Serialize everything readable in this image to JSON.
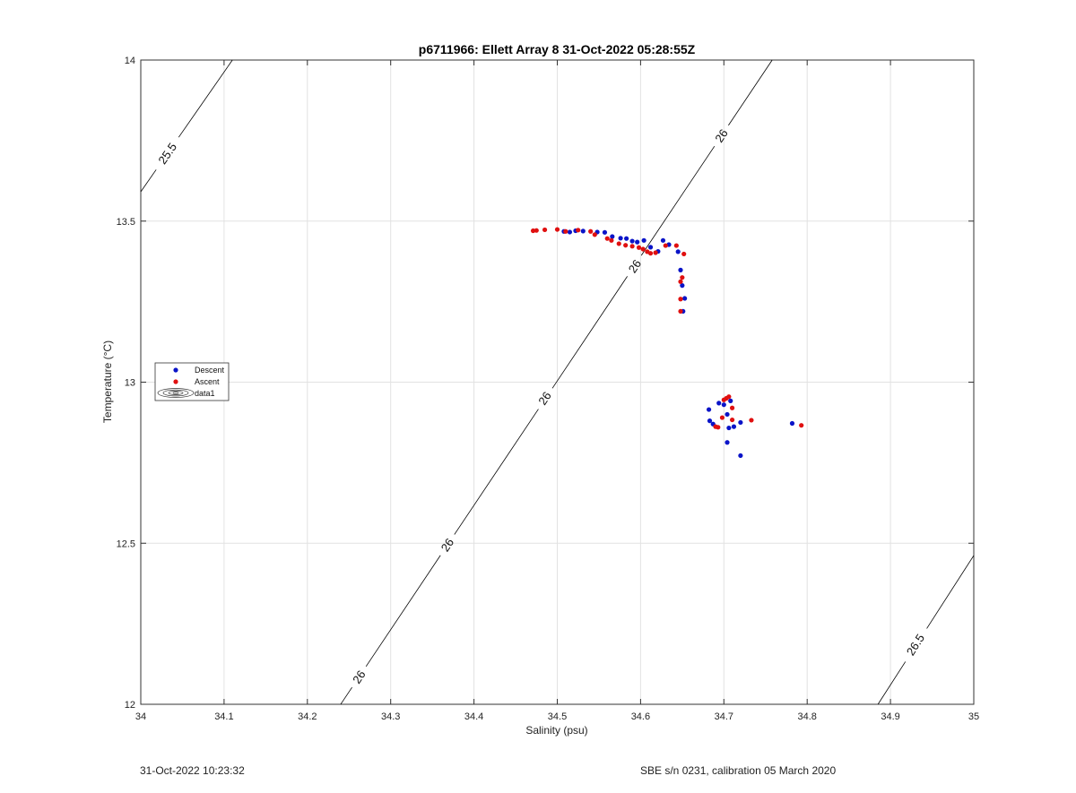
{
  "footer": {
    "left": "31-Oct-2022 10:23:32",
    "right": "SBE s/n 0231, calibration 05 March 2020"
  },
  "chart_data": {
    "type": "scatter",
    "title": "p6711966: Ellett Array 8 31-Oct-2022 05:28:55Z",
    "xlabel": "Salinity (psu)",
    "ylabel": "Temperature (°C)",
    "xlim": [
      34,
      35
    ],
    "ylim": [
      12,
      14
    ],
    "xticks": [
      "34",
      "34.1",
      "34.2",
      "34.3",
      "34.4",
      "34.5",
      "34.6",
      "34.7",
      "34.8",
      "34.9",
      "35"
    ],
    "yticks": [
      "12",
      "12.5",
      "13",
      "13.5",
      "14"
    ],
    "grid": true,
    "legend_position": "left",
    "colors": {
      "descent": "#0a14c8",
      "ascent": "#e01010",
      "contour": "#000000",
      "grid": "#e2e2e2"
    },
    "series": [
      {
        "name": "Descent",
        "points": [
          [
            34.508,
            13.468
          ],
          [
            34.515,
            13.466
          ],
          [
            34.522,
            13.47
          ],
          [
            34.531,
            13.469
          ],
          [
            34.548,
            13.466
          ],
          [
            34.557,
            13.465
          ],
          [
            34.566,
            13.452
          ],
          [
            34.576,
            13.447
          ],
          [
            34.583,
            13.446
          ],
          [
            34.59,
            13.438
          ],
          [
            34.596,
            13.435
          ],
          [
            34.604,
            13.44
          ],
          [
            34.612,
            13.419
          ],
          [
            34.621,
            13.406
          ],
          [
            34.627,
            13.44
          ],
          [
            34.634,
            13.427
          ],
          [
            34.645,
            13.405
          ],
          [
            34.648,
            13.348
          ],
          [
            34.65,
            13.3
          ],
          [
            34.653,
            13.26
          ],
          [
            34.651,
            13.22
          ],
          [
            34.682,
            12.915
          ],
          [
            34.683,
            12.88
          ],
          [
            34.687,
            12.87
          ],
          [
            34.694,
            12.935
          ],
          [
            34.7,
            12.93
          ],
          [
            34.704,
            12.9
          ],
          [
            34.706,
            12.858
          ],
          [
            34.708,
            12.942
          ],
          [
            34.712,
            12.862
          ],
          [
            34.704,
            12.813
          ],
          [
            34.72,
            12.875
          ],
          [
            34.72,
            12.772
          ],
          [
            34.782,
            12.872
          ]
        ]
      },
      {
        "name": "Ascent",
        "points": [
          [
            34.471,
            13.47
          ],
          [
            34.475,
            13.471
          ],
          [
            34.485,
            13.473
          ],
          [
            34.5,
            13.474
          ],
          [
            34.51,
            13.468
          ],
          [
            34.525,
            13.472
          ],
          [
            34.54,
            13.468
          ],
          [
            34.545,
            13.458
          ],
          [
            34.56,
            13.446
          ],
          [
            34.565,
            13.44
          ],
          [
            34.574,
            13.43
          ],
          [
            34.582,
            13.425
          ],
          [
            34.59,
            13.422
          ],
          [
            34.598,
            13.418
          ],
          [
            34.603,
            13.413
          ],
          [
            34.608,
            13.405
          ],
          [
            34.612,
            13.4
          ],
          [
            34.618,
            13.402
          ],
          [
            34.63,
            13.424
          ],
          [
            34.643,
            13.424
          ],
          [
            34.652,
            13.398
          ],
          [
            34.648,
            13.312
          ],
          [
            34.65,
            13.325
          ],
          [
            34.648,
            13.258
          ],
          [
            34.648,
            13.22
          ],
          [
            34.69,
            12.862
          ],
          [
            34.693,
            12.86
          ],
          [
            34.698,
            12.89
          ],
          [
            34.7,
            12.945
          ],
          [
            34.703,
            12.95
          ],
          [
            34.706,
            12.955
          ],
          [
            34.71,
            12.92
          ],
          [
            34.71,
            12.883
          ],
          [
            34.733,
            12.882
          ],
          [
            34.793,
            12.866
          ]
        ]
      }
    ],
    "legend_extra": "data1",
    "density_contours": [
      {
        "level": "25.5",
        "line": [
          [
            34.0,
            13.591
          ],
          [
            34.11,
            14.0
          ]
        ],
        "labels": [
          {
            "text": "25.5",
            "at": [
              34.032,
              13.71
            ]
          }
        ]
      },
      {
        "level": "26",
        "line": [
          [
            34.24,
            12.0
          ],
          [
            34.758,
            14.0
          ]
        ],
        "labels": [
          {
            "text": "26",
            "at": [
              34.262,
              12.085
            ]
          },
          {
            "text": "26",
            "at": [
              34.368,
              12.495
            ]
          },
          {
            "text": "26",
            "at": [
              34.485,
              12.95
            ]
          },
          {
            "text": "26",
            "at": [
              34.593,
              13.36
            ]
          },
          {
            "text": "26",
            "at": [
              34.697,
              13.765
            ]
          }
        ]
      },
      {
        "level": "26.5",
        "line": [
          [
            34.885,
            12.0
          ],
          [
            35.0,
            12.462
          ]
        ],
        "labels": [
          {
            "text": "26.5",
            "at": [
              34.93,
              12.185
            ]
          }
        ]
      }
    ]
  }
}
